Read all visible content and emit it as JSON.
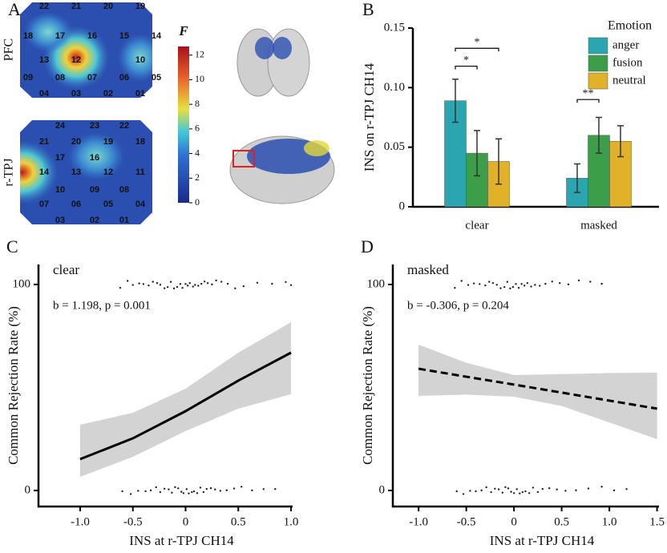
{
  "panel_a": {
    "label": "A",
    "heatmaps": [
      {
        "name": "PFC",
        "channels": [
          [
            "22",
            "21",
            "20",
            "19"
          ],
          [
            "18",
            "17",
            "16",
            "15",
            "14"
          ],
          [
            "13",
            "12",
            null,
            "10"
          ],
          [
            "09",
            "08",
            "07",
            "06",
            "05"
          ],
          [
            "04",
            "03",
            "02",
            "01"
          ]
        ]
      },
      {
        "name": "r-TPJ",
        "channels": [
          [
            "24",
            "23",
            "22"
          ],
          [
            "21",
            "20",
            "19",
            "18"
          ],
          [
            "17",
            "16",
            null
          ],
          [
            "14",
            "13",
            "12",
            "11"
          ],
          [
            "10",
            "09",
            "08"
          ],
          [
            "07",
            "06",
            "05",
            "04"
          ],
          [
            "03",
            "02",
            "01"
          ]
        ]
      }
    ],
    "colorbar": {
      "title": "F",
      "lim": [
        0,
        12.7
      ],
      "ticks": [
        0,
        2,
        4,
        6,
        8,
        10,
        12
      ]
    }
  },
  "chart_data": [
    {
      "type": "bar",
      "panel": "B",
      "categories": [
        "clear",
        "masked"
      ],
      "ylabel": "INS on r-TPJ CH14",
      "ylim": [
        0,
        0.15
      ],
      "yticks": [
        0,
        0.05,
        {
          "value": 0.1,
          "label": "0.10"
        },
        0.15
      ],
      "legend_title": "Emotion",
      "legend": "upper right",
      "series": [
        {
          "name": "anger",
          "color": "#2ba6b1",
          "values": [
            0.089,
            0.024
          ],
          "errors": [
            0.018,
            0.012
          ]
        },
        {
          "name": "fusion",
          "color": "#3c9e48",
          "values": [
            0.045,
            0.06
          ],
          "errors": [
            0.019,
            0.015
          ]
        },
        {
          "name": "neutral",
          "color": "#e2b12a",
          "values": [
            0.038,
            0.055
          ],
          "errors": [
            0.019,
            0.013
          ]
        }
      ],
      "annotations": [
        {
          "text": "*",
          "category": "clear",
          "between": [
            "anger",
            "fusion"
          ],
          "y": 0.118
        },
        {
          "text": "*",
          "category": "clear",
          "between": [
            "anger",
            "neutral"
          ],
          "y": 0.133
        },
        {
          "text": "**",
          "category": "masked",
          "between": [
            "anger",
            "fusion"
          ],
          "y": 0.09
        }
      ]
    },
    {
      "type": "line",
      "panel": "C",
      "title": "clear",
      "annotation": "b = 1.198, p = 0.001",
      "xlabel": "INS at r-TPJ CH14",
      "ylabel": "Common Rejection Rate (%)",
      "xlim": [
        -1.395,
        1.015
      ],
      "ylim": [
        -7.8,
        109.7
      ],
      "xticks": [
        {
          "value": -1,
          "label": "-1.0"
        },
        -0.5,
        0,
        0.5,
        {
          "value": 1,
          "label": "1.0"
        }
      ],
      "yticks": [
        0,
        100
      ],
      "line_style": "solid",
      "color": "#000000",
      "band_color": "#d3d3d3",
      "x": [
        -1,
        -0.5,
        0,
        0.5,
        1
      ],
      "values": [
        15.2,
        25.3,
        38.5,
        53.3,
        66.9
      ],
      "lower": [
        6.6,
        16.3,
        28.8,
        39.7,
        46.7
      ],
      "upper": [
        31.9,
        37.7,
        49.4,
        66.9,
        81.7
      ],
      "points": [
        {
          "y": 100,
          "x": [
            -0.62,
            -0.55,
            -0.5,
            -0.44,
            -0.4,
            -0.35,
            -0.31,
            -0.27,
            -0.24,
            -0.2,
            -0.17,
            -0.14,
            -0.11,
            -0.08,
            -0.05,
            -0.03,
            0,
            0.02,
            0.04,
            0.07,
            0.09,
            0.12,
            0.15,
            0.18,
            0.21,
            0.25,
            0.29,
            0.34,
            0.4,
            0.47,
            0.55,
            0.68,
            0.82,
            0.95,
            1.0
          ]
        },
        {
          "y": 0,
          "x": [
            -0.6,
            -0.52,
            -0.45,
            -0.38,
            -0.33,
            -0.28,
            -0.24,
            -0.2,
            -0.16,
            -0.13,
            -0.1,
            -0.07,
            -0.04,
            -0.02,
            0.01,
            0.03,
            0.06,
            0.08,
            0.11,
            0.14,
            0.17,
            0.2,
            0.24,
            0.28,
            0.33,
            0.39,
            0.46,
            0.53,
            0.63,
            0.74,
            0.85
          ]
        }
      ]
    },
    {
      "type": "line",
      "panel": "D",
      "title": "masked",
      "annotation": "b = -0.306, p = 0.204",
      "xlabel": "INS at r-TPJ CH14",
      "ylabel": "Common Rejection Rate (%)",
      "xlim": [
        -1.27,
        1.52
      ],
      "ylim": [
        -7.8,
        109.7
      ],
      "xticks": [
        {
          "value": -1,
          "label": "-1.0"
        },
        -0.5,
        0,
        0.5,
        {
          "value": 1,
          "label": "1.0"
        },
        1.5
      ],
      "yticks": [
        0,
        100
      ],
      "line_style": "dashed",
      "color": "#000000",
      "band_color": "#d3d3d3",
      "x": [
        -1,
        -0.5,
        0,
        0.5,
        1,
        1.5
      ],
      "values": [
        59.1,
        55.2,
        51.4,
        47.5,
        43.6,
        39.7
      ],
      "lower": [
        45.9,
        46.5,
        45.5,
        41,
        33,
        24.9
      ],
      "upper": [
        70.8,
        62,
        56,
        56.5,
        57,
        57.2
      ],
      "points": [
        {
          "y": 100,
          "x": [
            -0.62,
            -0.55,
            -0.48,
            -0.42,
            -0.36,
            -0.3,
            -0.26,
            -0.22,
            -0.18,
            -0.14,
            -0.1,
            -0.07,
            -0.04,
            -0.01,
            0.02,
            0.05,
            0.08,
            0.11,
            0.14,
            0.18,
            0.22,
            0.27,
            0.33,
            0.4,
            0.48,
            0.57,
            0.68,
            0.8,
            0.92
          ]
        },
        {
          "y": 0,
          "x": [
            -0.6,
            -0.53,
            -0.46,
            -0.4,
            -0.34,
            -0.29,
            -0.24,
            -0.2,
            -0.16,
            -0.12,
            -0.09,
            -0.06,
            -0.03,
            0,
            0.03,
            0.06,
            0.09,
            0.12,
            0.16,
            0.2,
            0.25,
            0.3,
            0.37,
            0.45,
            0.54,
            0.65,
            0.78,
            0.92,
            1.05,
            1.18
          ]
        }
      ]
    }
  ]
}
